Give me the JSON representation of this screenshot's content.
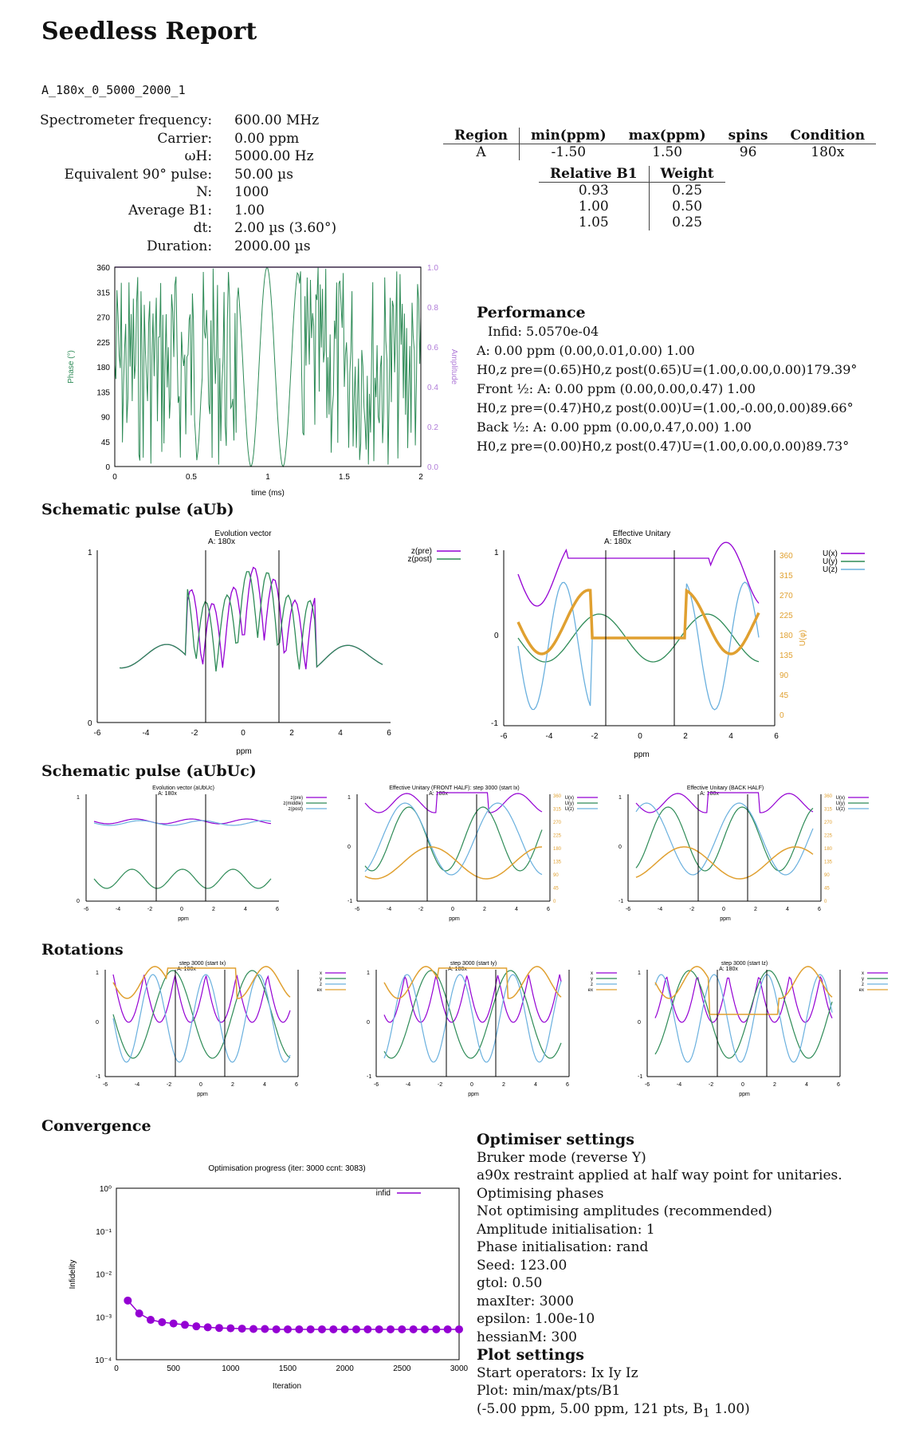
{
  "title": "Seedless Report",
  "filename": "A_180x_0_5000_2000_1",
  "params": [
    {
      "k": "Spectrometer frequency:",
      "v": "600.00 MHz"
    },
    {
      "k": "Carrier:",
      "v": "0.00 ppm"
    },
    {
      "k": "ωH:",
      "v": "5000.00 Hz"
    },
    {
      "k": "Equivalent 90° pulse:",
      "v": "50.00 µs"
    },
    {
      "k": "N:",
      "v": "1000"
    },
    {
      "k": "Average B1:",
      "v": "1.00"
    },
    {
      "k": "dt:",
      "v": "2.00 µs (3.60°)"
    },
    {
      "k": "Duration:",
      "v": "2000.00 µs"
    }
  ],
  "region_table": {
    "headers": [
      "Region",
      "min(ppm)",
      "max(ppm)",
      "spins",
      "Condition"
    ],
    "row": [
      "A",
      "-1.50",
      "1.50",
      "96",
      "180x"
    ]
  },
  "b1_table": {
    "headers": [
      "Relative B1",
      "Weight"
    ],
    "rows": [
      [
        "0.93",
        "0.25"
      ],
      [
        "1.00",
        "0.50"
      ],
      [
        "1.05",
        "0.25"
      ]
    ]
  },
  "performance": {
    "heading": "Performance",
    "lines": [
      "Infid:    5.0570e-04",
      "A: 0.00 ppm (0.00,0.01,0.00) 1.00",
      "H0,z pre=(0.65)H0,z post(0.65)U=(1.00,0.00,0.00)179.39°",
      "Front ½: A: 0.00 ppm (0.00,0.00,0.47) 1.00",
      "H0,z pre=(0.47)H0,z post(0.00)U=(1.00,-0.00,0.00)89.66°",
      "Back ½: A: 0.00 ppm (0.00,0.47,0.00) 1.00",
      "H0,z pre=(0.00)H0,z post(0.47)U=(1.00,0.00,0.00)89.73°"
    ]
  },
  "sections": {
    "aub": "Schematic pulse (aUb)",
    "aubuc": "Schematic pulse (aUbUc)",
    "rotations": "Rotations",
    "convergence": "Convergence"
  },
  "pulse_plot": {
    "ylabel": "Phase (°)",
    "y2label": "Amplitude",
    "xlabel": "time (ms)",
    "yticks": [
      "360",
      "315",
      "270",
      "225",
      "180",
      "135",
      "90",
      "45",
      "0"
    ],
    "y2ticks": [
      "1.0",
      "0.8",
      "0.6",
      "0.4",
      "0.2",
      "0.0"
    ],
    "xticks": [
      "0",
      "0.5",
      "1",
      "1.5",
      "2"
    ]
  },
  "aub_left": {
    "title": "Evolution vector",
    "subtitle": "A: 180x",
    "xlabel": "ppm",
    "legend": [
      "z(pre)",
      "z(post)"
    ],
    "yticks": [
      "1",
      "0"
    ],
    "xticks": [
      "-6",
      "-4",
      "-2",
      "0",
      "2",
      "4",
      "6"
    ]
  },
  "aub_right": {
    "title": "Effective Unitary",
    "subtitle": "A: 180x",
    "xlabel": "ppm",
    "y2label": "U(φ)",
    "legend": [
      "U(x)",
      "U(y)",
      "U(z)"
    ],
    "yticks": [
      "1",
      "0",
      "-1"
    ],
    "y2ticks": [
      "360",
      "315",
      "270",
      "225",
      "180",
      "135",
      "90",
      "45",
      "0"
    ],
    "xticks": [
      "-6",
      "-4",
      "-2",
      "0",
      "2",
      "4",
      "6"
    ]
  },
  "aubuc_plots": [
    {
      "title": "Evolution vector (aUbUc)",
      "subtitle": "A: 180x",
      "legend": [
        "z(pre)",
        "z(middle)",
        "z(post)"
      ]
    },
    {
      "title": "Effective Unitary (FRONT HALF): step 3000 (start Ix)",
      "subtitle": "A: 180x",
      "legend": [
        "U(x)",
        "U(y)",
        "U(z)"
      ]
    },
    {
      "title": "Effective Unitary (BACK HALF)",
      "subtitle": "A: 180x",
      "legend": [
        "U(x)",
        "U(y)",
        "U(z)"
      ]
    }
  ],
  "small_axes": {
    "xlabel": "ppm",
    "yticks": [
      "1",
      "0",
      "-1"
    ],
    "yticks01": [
      "1",
      "0"
    ],
    "xticks": [
      "-6",
      "-4",
      "-2",
      "0",
      "2",
      "4",
      "6"
    ],
    "y2ticks": [
      "360",
      "315",
      "270",
      "225",
      "180",
      "135",
      "90",
      "45",
      "0"
    ]
  },
  "rotation_plots": [
    {
      "title": "step 3000 (start Ix)",
      "subtitle": "A: 180x",
      "legend": [
        "x",
        "y",
        "z",
        "ex"
      ]
    },
    {
      "title": "step 3000 (start Iy)",
      "subtitle": "A: 180x",
      "legend": [
        "x",
        "y",
        "z",
        "ex"
      ]
    },
    {
      "title": "step 3000 (start Iz)",
      "subtitle": "A: 180x",
      "legend": [
        "x",
        "y",
        "z",
        "ex"
      ]
    }
  ],
  "convergence_plot": {
    "title": "Optimisation progress (iter: 3000 ccnt: 3083)",
    "xlabel": "Iteration",
    "ylabel": "Infidelity",
    "legend": "infid",
    "xticks": [
      "0",
      "500",
      "1000",
      "1500",
      "2000",
      "2500",
      "3000"
    ]
  },
  "colors": {
    "purple": "#9400d3",
    "green": "#2e8b57",
    "blue": "#6ab0de",
    "orange": "#e0a030",
    "pulse": "#2e8b57",
    "amp": "#b07cd8"
  },
  "chart_data": [
    {
      "type": "scatter",
      "title": "Optimisation progress (iter: 3000 ccnt: 3083)",
      "xlabel": "Iteration",
      "ylabel": "Infidelity",
      "log_y": true,
      "xlim": [
        0,
        3000
      ],
      "ylim": [
        0.0001,
        1
      ],
      "series": [
        {
          "name": "infid",
          "x": [
            100,
            200,
            300,
            400,
            500,
            600,
            700,
            800,
            900,
            1000,
            1100,
            1200,
            1300,
            1400,
            1500,
            1600,
            1700,
            1800,
            1900,
            2000,
            2100,
            2200,
            2300,
            2400,
            2500,
            2600,
            2700,
            2800,
            2900,
            3000
          ],
          "y": [
            0.0024,
            0.0012,
            0.00085,
            0.00075,
            0.0007,
            0.00065,
            0.0006,
            0.00057,
            0.00055,
            0.00054,
            0.00053,
            0.00052,
            0.00052,
            0.00051,
            0.00051,
            0.00051,
            0.00051,
            0.00051,
            0.00051,
            0.00051,
            0.00051,
            0.00051,
            0.00051,
            0.00051,
            0.00051,
            0.00051,
            0.00051,
            0.00051,
            0.00051,
            0.00051
          ]
        }
      ]
    }
  ]
}
